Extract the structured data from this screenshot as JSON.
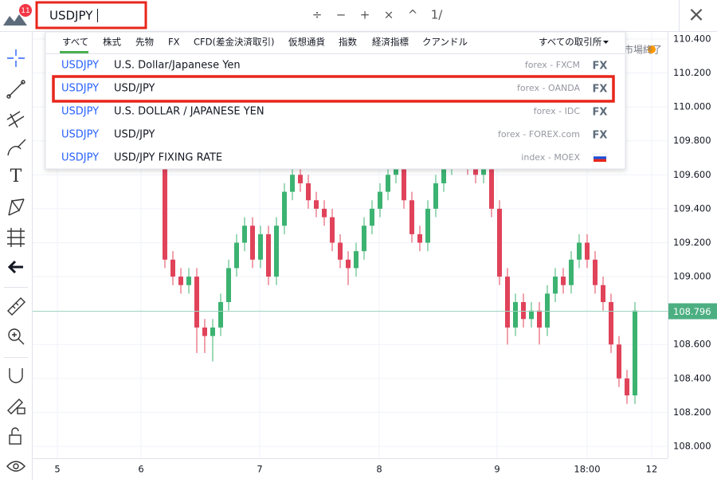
{
  "header": {
    "notification_count": "11",
    "search": "USDJPY",
    "tools": [
      "÷",
      "−",
      "+",
      "×",
      "^",
      "1/"
    ],
    "close": "×"
  },
  "filters": {
    "tabs": [
      "すべて",
      "株式",
      "先物",
      "FX",
      "CFD(差金決済取引)",
      "仮想通貨",
      "指数",
      "経済指標",
      "クアンドル"
    ],
    "exchange": "すべての取引所"
  },
  "results": [
    {
      "symbol": "USDJPY",
      "description": "U.S. Dollar/Japanese Yen",
      "exchange": "forex - FXCM",
      "type": "FX"
    },
    {
      "symbol": "USDJPY",
      "description": "USD/JPY",
      "exchange": "forex - OANDA",
      "type": "FX"
    },
    {
      "symbol": "USDJPY",
      "description": "U.S. DOLLAR / JAPANESE YEN",
      "exchange": "forex - IDC",
      "type": "FX"
    },
    {
      "symbol": "USDJPY",
      "description": "USD/JPY",
      "exchange": "forex - FOREX.com",
      "type": "FX"
    },
    {
      "symbol": "USDJPY",
      "description": "USD/JPY FIXING RATE",
      "exchange": "index - MOEX"
    }
  ],
  "chart": {
    "market_status": "市場終了",
    "price_ticks": [
      {
        "value": 110.4,
        "label": "110.400"
      },
      {
        "value": 110.2,
        "label": "110.200"
      },
      {
        "value": 110,
        "label": "110.000"
      },
      {
        "value": 109.8,
        "label": "109.800"
      },
      {
        "value": 109.6,
        "label": "109.600"
      },
      {
        "value": 109.4,
        "label": "109.400"
      },
      {
        "value": 109.2,
        "label": "109.200"
      },
      {
        "value": 109,
        "label": "109.000"
      },
      {
        "value": 108.6,
        "label": "108.600"
      },
      {
        "value": 108.4,
        "label": "108.400"
      },
      {
        "value": 108.2,
        "label": "108.200"
      },
      {
        "value": 108,
        "label": "108.000"
      }
    ],
    "last_price": 108.796,
    "time_ticks": [
      "5",
      "6",
      "7",
      "8",
      "9",
      "18:00",
      "12"
    ],
    "candles": [
      [
        109.7,
        109.75,
        109.05,
        109.1
      ],
      [
        109.1,
        109.15,
        108.95,
        109.0
      ],
      [
        109.0,
        109.05,
        108.9,
        108.95
      ],
      [
        108.95,
        109.05,
        108.9,
        109.0
      ],
      [
        109.0,
        109.05,
        108.55,
        108.7
      ],
      [
        108.7,
        108.75,
        108.55,
        108.65
      ],
      [
        108.65,
        108.75,
        108.5,
        108.7
      ],
      [
        108.7,
        108.9,
        108.65,
        108.85
      ],
      [
        108.85,
        109.1,
        108.8,
        109.05
      ],
      [
        109.05,
        109.25,
        109.0,
        109.2
      ],
      [
        109.2,
        109.35,
        109.15,
        109.3
      ],
      [
        109.3,
        109.35,
        109.05,
        109.1
      ],
      [
        109.1,
        109.3,
        109.05,
        109.25
      ],
      [
        109.25,
        109.3,
        108.95,
        109.0
      ],
      [
        109.0,
        109.35,
        108.95,
        109.3
      ],
      [
        109.3,
        109.55,
        109.25,
        109.5
      ],
      [
        109.5,
        109.65,
        109.45,
        109.6
      ],
      [
        109.6,
        109.65,
        109.5,
        109.55
      ],
      [
        109.55,
        109.6,
        109.4,
        109.45
      ],
      [
        109.45,
        109.5,
        109.35,
        109.4
      ],
      [
        109.4,
        109.45,
        109.3,
        109.35
      ],
      [
        109.35,
        109.4,
        109.15,
        109.2
      ],
      [
        109.2,
        109.25,
        109.05,
        109.1
      ],
      [
        109.1,
        109.15,
        108.95,
        109.05
      ],
      [
        109.05,
        109.2,
        109.0,
        109.15
      ],
      [
        109.15,
        109.35,
        109.1,
        109.3
      ],
      [
        109.3,
        109.45,
        109.25,
        109.4
      ],
      [
        109.4,
        109.55,
        109.35,
        109.5
      ],
      [
        109.5,
        109.65,
        109.45,
        109.6
      ],
      [
        109.6,
        109.75,
        109.55,
        109.7
      ],
      [
        109.7,
        109.75,
        109.4,
        109.45
      ],
      [
        109.45,
        109.5,
        109.2,
        109.25
      ],
      [
        109.25,
        109.3,
        109.15,
        109.2
      ],
      [
        109.2,
        109.45,
        109.15,
        109.4
      ],
      [
        109.4,
        109.6,
        109.35,
        109.55
      ],
      [
        109.55,
        109.7,
        109.5,
        109.65
      ],
      [
        109.65,
        109.8,
        109.6,
        109.75
      ],
      [
        109.75,
        109.8,
        109.65,
        109.7
      ],
      [
        109.7,
        109.75,
        109.6,
        109.65
      ],
      [
        109.65,
        109.7,
        109.55,
        109.6
      ],
      [
        109.6,
        109.75,
        109.55,
        109.7
      ],
      [
        109.7,
        109.75,
        109.35,
        109.4
      ],
      [
        109.4,
        109.45,
        108.95,
        109.0
      ],
      [
        109.0,
        109.05,
        108.6,
        108.7
      ],
      [
        108.7,
        108.9,
        108.65,
        108.85
      ],
      [
        108.85,
        108.9,
        108.7,
        108.75
      ],
      [
        108.75,
        108.85,
        108.7,
        108.8
      ],
      [
        108.8,
        108.85,
        108.6,
        108.7
      ],
      [
        108.7,
        108.95,
        108.65,
        108.9
      ],
      [
        108.9,
        109.05,
        108.85,
        109.0
      ],
      [
        109.0,
        109.05,
        108.9,
        108.95
      ],
      [
        108.95,
        109.15,
        108.9,
        109.1
      ],
      [
        109.1,
        109.25,
        109.05,
        109.2
      ],
      [
        109.2,
        109.25,
        109.05,
        109.1
      ],
      [
        109.1,
        109.15,
        108.9,
        108.95
      ],
      [
        108.95,
        109.0,
        108.8,
        108.85
      ],
      [
        108.85,
        108.9,
        108.55,
        108.6
      ],
      [
        108.6,
        108.65,
        108.35,
        108.4
      ],
      [
        108.4,
        108.45,
        108.25,
        108.3
      ],
      [
        108.3,
        108.85,
        108.25,
        108.8
      ]
    ]
  }
}
